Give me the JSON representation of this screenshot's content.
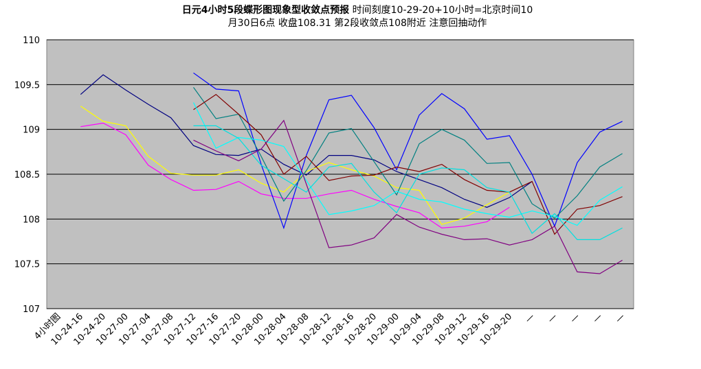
{
  "chart_data": {
    "type": "line",
    "title": "日元4小时5段蝶形图现象型收敛点预报",
    "subtitle": "时间刻度10-29-20+10小时=北京时间10月30日6点 收盘108.31 第2段收敛点108附近 注意回抽动作",
    "categories": [
      "4小时图",
      "10-24-16",
      "10-24-20",
      "10-27-00",
      "10-27-04",
      "10-27-08",
      "10-27-12",
      "10-27-16",
      "10-27-20",
      "10-28-00",
      "10-28-04",
      "10-28-08",
      "10-28-12",
      "10-28-16",
      "10-28-20",
      "10-29-00",
      "10-29-04",
      "10-29-08",
      "10-29-12",
      "10-29-16",
      "10-29-20",
      "—",
      "—",
      "—",
      "—",
      "—"
    ],
    "ylim": [
      107,
      110
    ],
    "yticks": [
      107,
      107.5,
      108,
      108.5,
      109,
      109.5,
      110
    ],
    "grid": true,
    "series": [
      {
        "color": "#000080",
        "values": [
          null,
          109.39,
          109.61,
          109.44,
          109.28,
          109.13,
          108.82,
          108.72,
          108.71,
          108.78,
          108.61,
          108.49,
          108.71,
          108.71,
          108.66,
          108.53,
          108.44,
          108.35,
          108.22,
          108.13,
          108.24,
          108.42,
          null,
          null,
          null,
          null
        ]
      },
      {
        "color": "#ffff00",
        "values": [
          null,
          109.26,
          109.09,
          109.04,
          108.7,
          108.51,
          108.49,
          108.49,
          108.55,
          108.4,
          108.3,
          108.53,
          108.63,
          108.55,
          108.48,
          108.35,
          108.32,
          107.94,
          108.01,
          108.16,
          108.3,
          null,
          null,
          null,
          null,
          null
        ]
      },
      {
        "color": "#ff00ff",
        "values": [
          null,
          109.03,
          109.07,
          108.94,
          108.6,
          108.44,
          108.32,
          108.33,
          108.42,
          108.28,
          108.23,
          108.23,
          108.28,
          108.32,
          108.22,
          108.14,
          108.07,
          107.9,
          107.92,
          107.97,
          108.13,
          null,
          null,
          null,
          null,
          null
        ]
      },
      {
        "color": "#0000ff",
        "values": [
          null,
          null,
          null,
          null,
          null,
          null,
          109.63,
          109.45,
          109.43,
          108.61,
          107.9,
          108.71,
          109.33,
          109.38,
          109.02,
          108.55,
          109.16,
          109.4,
          109.23,
          108.89,
          108.93,
          108.5,
          107.92,
          108.63,
          108.97,
          109.09
        ]
      },
      {
        "color": "#008080",
        "values": [
          null,
          null,
          null,
          null,
          null,
          null,
          109.47,
          109.12,
          109.17,
          108.7,
          108.2,
          108.54,
          108.96,
          109.01,
          108.64,
          108.27,
          108.84,
          109.0,
          108.88,
          108.62,
          108.63,
          108.17,
          108.01,
          108.26,
          108.58,
          108.73
        ]
      },
      {
        "color": "#800000",
        "values": [
          null,
          null,
          null,
          null,
          null,
          null,
          109.22,
          109.39,
          109.17,
          108.94,
          108.5,
          108.7,
          108.43,
          108.48,
          108.49,
          108.58,
          108.53,
          108.61,
          108.44,
          108.32,
          108.3,
          108.42,
          107.83,
          108.11,
          108.15,
          108.25
        ]
      },
      {
        "color": "#00ffff",
        "values": [
          null,
          null,
          null,
          null,
          null,
          null,
          109.3,
          108.79,
          108.91,
          108.88,
          108.81,
          108.43,
          108.05,
          108.09,
          108.15,
          108.31,
          108.22,
          108.19,
          108.11,
          108.06,
          108.02,
          108.09,
          108.03,
          107.93,
          108.21,
          108.36
        ]
      },
      {
        "color": "#00e0e0",
        "values": [
          null,
          null,
          null,
          null,
          null,
          null,
          109.04,
          109.04,
          108.9,
          108.6,
          108.45,
          108.3,
          108.58,
          108.62,
          108.3,
          108.07,
          108.5,
          108.57,
          108.55,
          108.35,
          108.3,
          107.84,
          108.06,
          107.77,
          107.77,
          107.9
        ]
      },
      {
        "color": "#800080",
        "values": [
          null,
          null,
          null,
          null,
          null,
          null,
          108.88,
          108.76,
          108.65,
          108.78,
          109.1,
          108.39,
          107.68,
          107.71,
          107.79,
          108.05,
          107.91,
          107.83,
          107.77,
          107.78,
          107.71,
          107.77,
          107.92,
          107.41,
          107.39,
          107.54
        ]
      }
    ]
  }
}
